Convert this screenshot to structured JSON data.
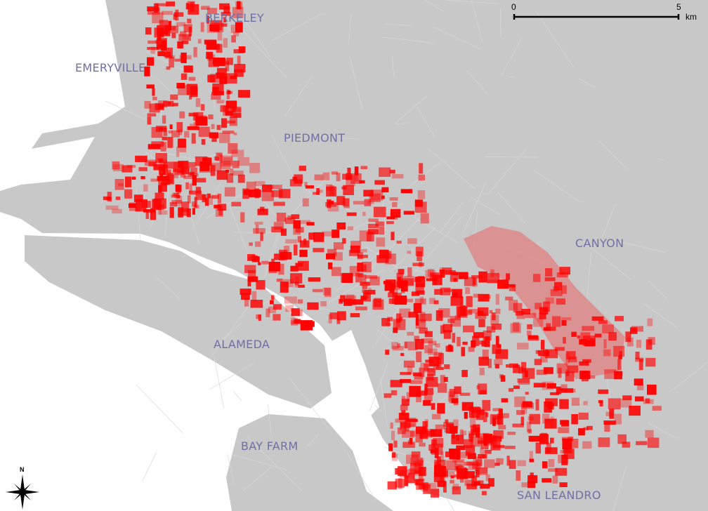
{
  "map": {
    "places": [
      {
        "id": "berkeley",
        "label": "BERKELEY"
      },
      {
        "id": "emeryville",
        "label": "EMERYVILLE"
      },
      {
        "id": "piedmont",
        "label": "PIEDMONT"
      },
      {
        "id": "canyon",
        "label": "CANYON"
      },
      {
        "id": "alameda",
        "label": "ALAMEDA"
      },
      {
        "id": "bay-farm",
        "label": "BAY FARM"
      },
      {
        "id": "san-leandro",
        "label": "SAN LEANDRO"
      }
    ],
    "scale_bar": {
      "start": "0",
      "end": "5",
      "unit": "km"
    },
    "north_arrow": {
      "label": "N",
      "icon": "compass-rose-icon"
    },
    "colors": {
      "land": "#c8c8c8",
      "water": "#ffffff",
      "highlight": "#ff0000",
      "streets": "#d8d8d8",
      "label": "#6f6fa6"
    }
  }
}
